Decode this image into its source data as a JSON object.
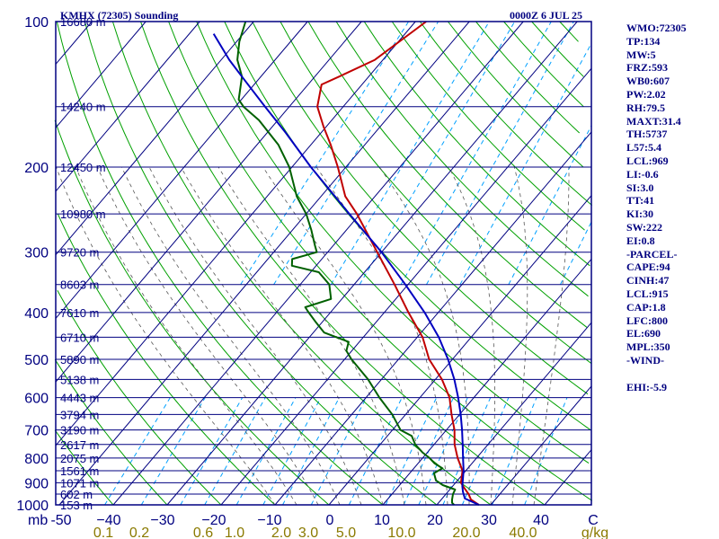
{
  "header": {
    "station": "KMHX (72305) Sounding",
    "time": "0000Z  6 JUL 25"
  },
  "indices": [
    "WMO:72305",
    "TP:134",
    "MW:5",
    "FRZ:593",
    "WB0:607",
    "PW:2.02",
    "RH:79.5",
    "MAXT:31.4",
    "TH:5737",
    "L57:5.4",
    "LCL:969",
    "LI:-0.6",
    "SI:3.0",
    "TT:41",
    "KI:30",
    "SW:222",
    "EI:0.8",
    "-PARCEL-",
    "CAPE:94",
    "CINH:47",
    "LCL:915",
    "CAP:1.8",
    "LFC:800",
    "EL:690",
    "MPL:350",
    "-WIND-",
    "",
    "EHI:-5.9"
  ],
  "axis_corner_label": "mb",
  "colors": {
    "frame": "#000080",
    "isobar": "#000080",
    "isotherm": "#000080",
    "dry_adiabat": "#00a000",
    "moist_adiabat": "#555555",
    "mixing_ratio": "#00a0ff",
    "temperature": "#c00000",
    "dewpoint": "#006000",
    "parcel": "#0000c0",
    "mixing_label": "#8a7a00"
  },
  "chart_data": {
    "type": "line",
    "title": "KMHX (72305) Sounding",
    "subtitle": "0000Z  6 JUL 25",
    "ylabel": "mb",
    "y_scale": "log",
    "ylim": [
      1000,
      100
    ],
    "xlim": [
      -50,
      50
    ],
    "pressure_ticks": [
      100,
      200,
      300,
      400,
      500,
      600,
      700,
      800,
      900,
      1000
    ],
    "height_labels": [
      {
        "p": 100,
        "label": "16680 m"
      },
      {
        "p": 150,
        "label": "14240 m"
      },
      {
        "p": 200,
        "label": "12450 m"
      },
      {
        "p": 250,
        "label": "10980 m"
      },
      {
        "p": 300,
        "label": "9720 m"
      },
      {
        "p": 350,
        "label": "8603 m"
      },
      {
        "p": 400,
        "label": "7610 m"
      },
      {
        "p": 450,
        "label": "6710 m"
      },
      {
        "p": 500,
        "label": "5890 m"
      },
      {
        "p": 550,
        "label": "5138 m"
      },
      {
        "p": 600,
        "label": "4443 m"
      },
      {
        "p": 650,
        "label": "3794 m"
      },
      {
        "p": 700,
        "label": "3190 m"
      },
      {
        "p": 750,
        "label": "2617 m"
      },
      {
        "p": 800,
        "label": "2075 m"
      },
      {
        "p": 850,
        "label": "1561 m"
      },
      {
        "p": 900,
        "label": "1071 m"
      },
      {
        "p": 950,
        "label": "602 m"
      },
      {
        "p": 1000,
        "label": "153 m"
      }
    ],
    "temperature_ticks": [
      "-50",
      "−40",
      "−30",
      "−20",
      "−10",
      "0",
      "10",
      "20",
      "30",
      "40",
      "C"
    ],
    "mixing_ratio_labels": [
      "0.1",
      "0.2",
      "0.6",
      "1.0",
      "2.0",
      "3.0",
      "5.0",
      "10.0",
      "20.0",
      "40.0",
      "g/kg"
    ],
    "series": [
      {
        "id": "temperature",
        "points": [
          [
            1000,
            27.8
          ],
          [
            975,
            25.5
          ],
          [
            950,
            24.2
          ],
          [
            925,
            22.6
          ],
          [
            900,
            21.0
          ],
          [
            850,
            19.4
          ],
          [
            800,
            16.5
          ],
          [
            750,
            13.8
          ],
          [
            700,
            11.5
          ],
          [
            650,
            8.5
          ],
          [
            600,
            5.5
          ],
          [
            550,
            1.2
          ],
          [
            500,
            -4.3
          ],
          [
            450,
            -9.0
          ],
          [
            400,
            -15.5
          ],
          [
            350,
            -22.5
          ],
          [
            300,
            -30.8
          ],
          [
            250,
            -40.6
          ],
          [
            230,
            -45.5
          ],
          [
            200,
            -51.5
          ],
          [
            180,
            -56.3
          ],
          [
            165,
            -60.5
          ],
          [
            150,
            -64.8
          ],
          [
            135,
            -67.5
          ],
          [
            130,
            -65.5
          ],
          [
            120,
            -61.5
          ],
          [
            100,
            -58.0
          ]
        ]
      },
      {
        "id": "dewpoint",
        "points": [
          [
            1000,
            23.2
          ],
          [
            990,
            22.5
          ],
          [
            975,
            22.0
          ],
          [
            950,
            21.3
          ],
          [
            930,
            21.0
          ],
          [
            910,
            18.0
          ],
          [
            890,
            16.0
          ],
          [
            860,
            14.5
          ],
          [
            840,
            15.3
          ],
          [
            820,
            13.0
          ],
          [
            800,
            11.3
          ],
          [
            780,
            9.2
          ],
          [
            750,
            6.5
          ],
          [
            720,
            4.5
          ],
          [
            700,
            1.5
          ],
          [
            650,
            -2.5
          ],
          [
            600,
            -7.5
          ],
          [
            550,
            -12.5
          ],
          [
            500,
            -18.7
          ],
          [
            480,
            -21.0
          ],
          [
            460,
            -22.0
          ],
          [
            440,
            -28.0
          ],
          [
            420,
            -31.0
          ],
          [
            400,
            -34.0
          ],
          [
            390,
            -35.5
          ],
          [
            375,
            -32.0
          ],
          [
            350,
            -34.6
          ],
          [
            330,
            -38.5
          ],
          [
            320,
            -44.5
          ],
          [
            310,
            -45.5
          ],
          [
            300,
            -42.0
          ],
          [
            290,
            -43.5
          ],
          [
            270,
            -46.5
          ],
          [
            250,
            -50.0
          ],
          [
            230,
            -54.5
          ],
          [
            200,
            -60.5
          ],
          [
            180,
            -66.0
          ],
          [
            160,
            -73.5
          ],
          [
            150,
            -78.5
          ],
          [
            145,
            -80.5
          ],
          [
            130,
            -83.5
          ],
          [
            120,
            -87.0
          ],
          [
            110,
            -89.5
          ],
          [
            100,
            -91.5
          ]
        ]
      },
      {
        "id": "parcel",
        "points": [
          [
            1000,
            27.8
          ],
          [
            970,
            24.2
          ],
          [
            940,
            22.8
          ],
          [
            915,
            21.8
          ],
          [
            900,
            21.3
          ],
          [
            850,
            19.6
          ],
          [
            800,
            17.5
          ],
          [
            750,
            15.3
          ],
          [
            700,
            12.9
          ],
          [
            650,
            10.2
          ],
          [
            600,
            7.1
          ],
          [
            550,
            3.5
          ],
          [
            500,
            -0.8
          ],
          [
            450,
            -6.0
          ],
          [
            400,
            -12.5
          ],
          [
            350,
            -20.5
          ],
          [
            300,
            -30.0
          ],
          [
            250,
            -42.0
          ],
          [
            200,
            -56.5
          ],
          [
            170,
            -66.5
          ],
          [
            150,
            -74.5
          ],
          [
            130,
            -83.5
          ],
          [
            120,
            -88.5
          ],
          [
            106,
            -95.5
          ]
        ]
      }
    ]
  }
}
